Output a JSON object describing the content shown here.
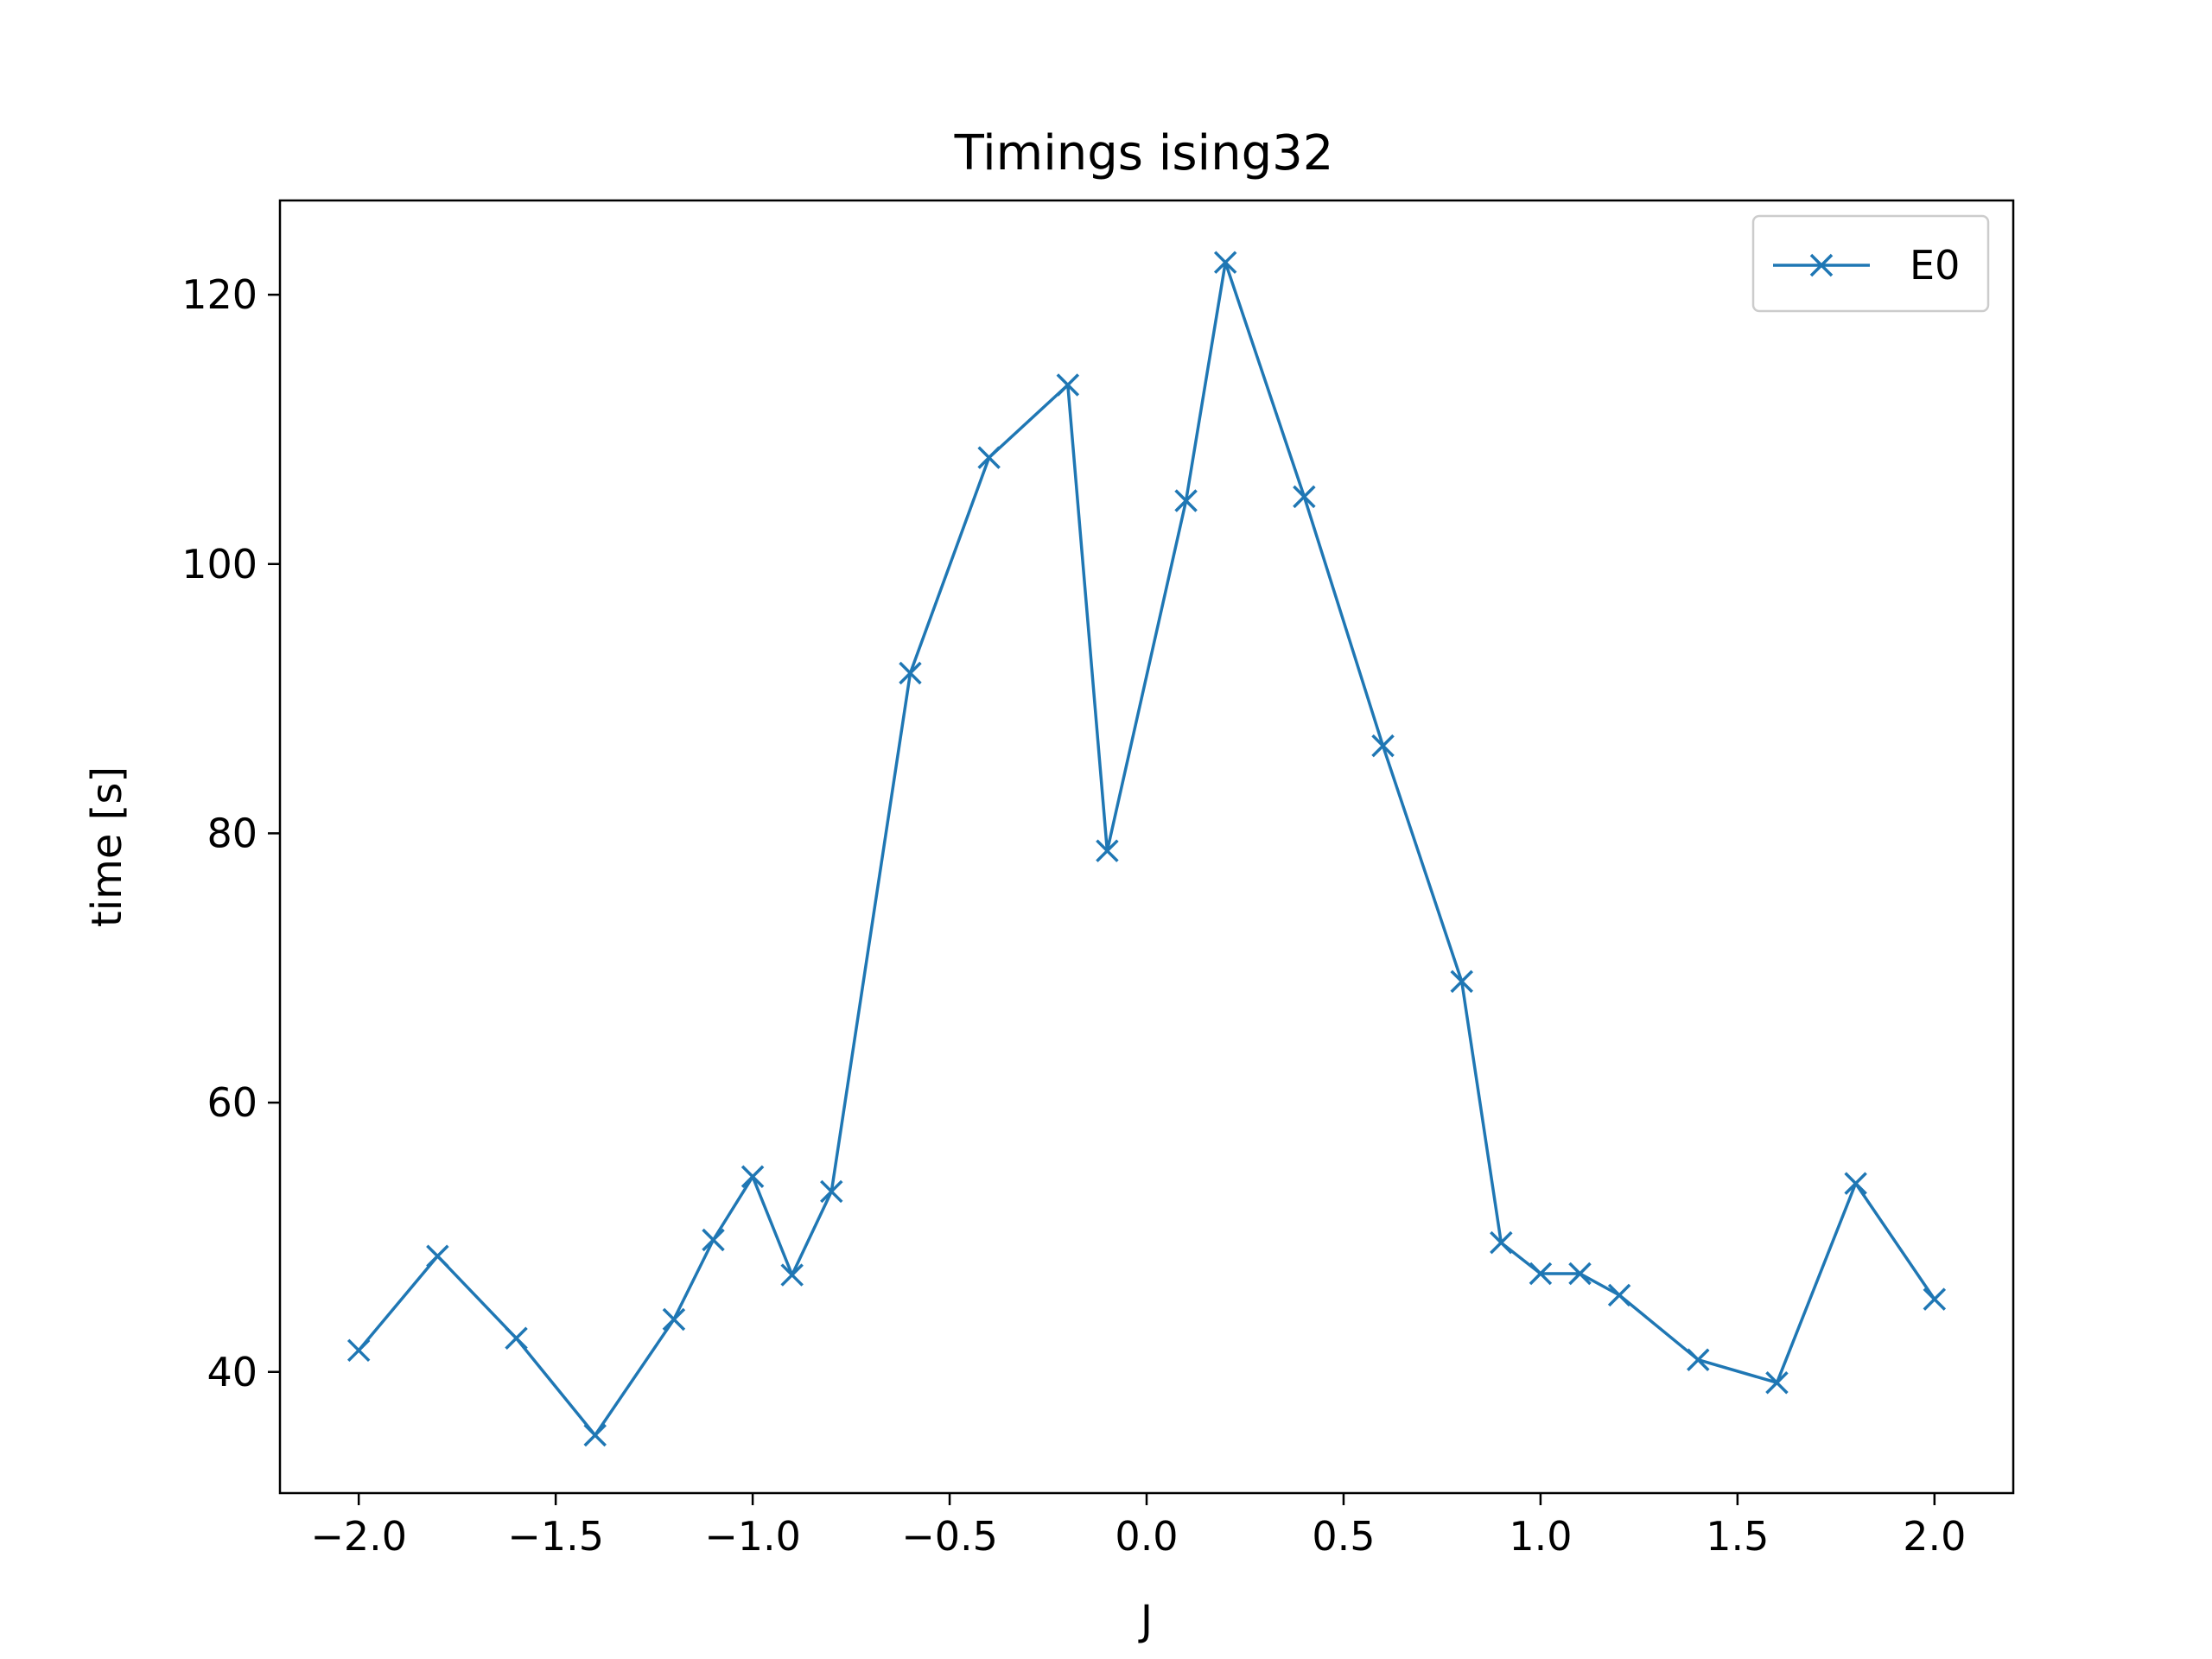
{
  "chart_data": {
    "type": "line",
    "title": "Timings ising32",
    "xlabel": "J",
    "ylabel": "time [s]",
    "xlim": [
      -2.2,
      2.2
    ],
    "ylim": [
      31.0,
      127.0
    ],
    "xticks": [
      -2.0,
      -1.5,
      -1.0,
      -0.5,
      0.0,
      0.5,
      1.0,
      1.5,
      2.0
    ],
    "xtick_labels": [
      "−2.0",
      "−1.5",
      "−1.0",
      "−0.5",
      "0.0",
      "0.5",
      "1.0",
      "1.5",
      "2.0"
    ],
    "yticks": [
      40,
      60,
      80,
      100,
      120
    ],
    "ytick_labels": [
      "40",
      "60",
      "80",
      "100",
      "120"
    ],
    "grid": false,
    "legend_position": "top-right",
    "series": [
      {
        "name": "E0",
        "color": "#1f77b4",
        "marker": "x",
        "x": [
          -2.0,
          -1.8,
          -1.6,
          -1.4,
          -1.2,
          -1.1,
          -1.0,
          -0.9,
          -0.8,
          -0.6,
          -0.4,
          -0.2,
          -0.1,
          0.1,
          0.2,
          0.4,
          0.6,
          0.8,
          0.9,
          1.0,
          1.1,
          1.2,
          1.4,
          1.6,
          1.8,
          2.0
        ],
        "y": [
          41.6,
          48.6,
          42.5,
          35.3,
          43.9,
          49.8,
          54.5,
          47.2,
          53.4,
          91.9,
          107.9,
          113.3,
          78.7,
          104.7,
          122.4,
          105.0,
          86.5,
          69.0,
          49.6,
          47.3,
          47.3,
          45.7,
          40.9,
          39.2,
          54.0,
          45.4
        ]
      }
    ]
  }
}
